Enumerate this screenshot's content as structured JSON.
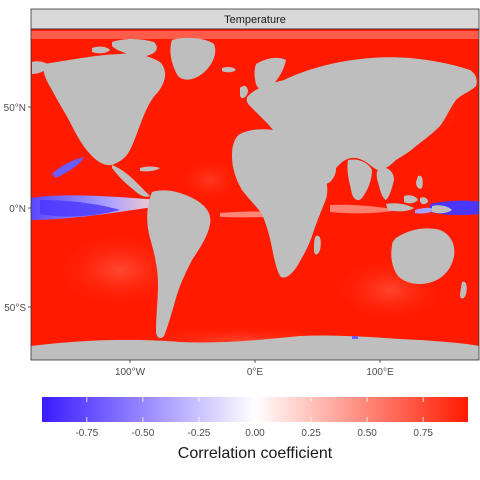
{
  "panel": {
    "strip_label": "Temperature"
  },
  "axes": {
    "y_ticks": [
      "50°N",
      "0°N",
      "50°S"
    ],
    "x_ticks": [
      "100°W",
      "0°E",
      "100°E"
    ]
  },
  "legend": {
    "title": "Correlation coefficient",
    "ticks": [
      "-0.75",
      "-0.50",
      "-0.25",
      "0.00",
      "0.25",
      "0.50",
      "0.75"
    ],
    "range": [
      -0.95,
      0.95
    ]
  },
  "colors": {
    "ocean_positive": "#ff1a00",
    "ocean_negative": "#4b3bff",
    "neutral": "#ffffff",
    "land": "#bebebe",
    "strip_fill": "#d9d9d9",
    "panel_border": "#333333"
  }
}
